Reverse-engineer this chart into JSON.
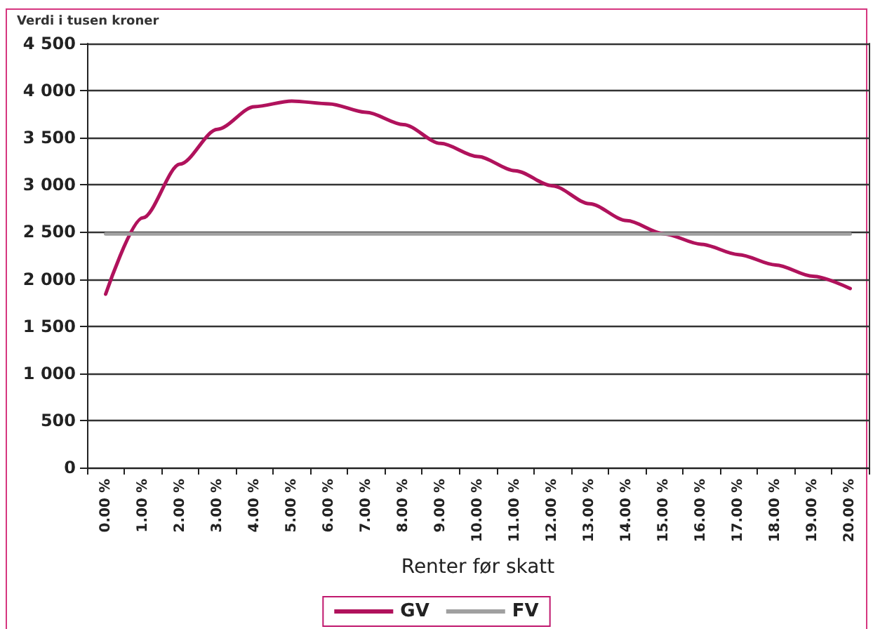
{
  "chart_data": {
    "type": "line",
    "ylabel": "Verdi i tusen kroner",
    "xlabel": "Renter før skatt",
    "categories": [
      "0.00 %",
      "1.00 %",
      "2.00 %",
      "3.00 %",
      "4.00 %",
      "5.00 %",
      "6.00 %",
      "7.00 %",
      "8.00 %",
      "9.00 %",
      "10.00 %",
      "11.00 %",
      "12.00 %",
      "13.00 %",
      "14.00 %",
      "15.00 %",
      "16.00 %",
      "17.00 %",
      "18.00 %",
      "19.00 %",
      "20.00 %"
    ],
    "series": [
      {
        "name": "GV",
        "color": "#b0125c",
        "values": [
          1840,
          2650,
          3220,
          3590,
          3830,
          3890,
          3860,
          3770,
          3640,
          3440,
          3300,
          3150,
          2990,
          2800,
          2620,
          2480,
          2370,
          2260,
          2150,
          2030,
          1900
        ]
      },
      {
        "name": "FV",
        "color": "#a0a0a0",
        "values": [
          2480,
          2480,
          2480,
          2480,
          2480,
          2480,
          2480,
          2480,
          2480,
          2480,
          2480,
          2480,
          2480,
          2480,
          2480,
          2480,
          2480,
          2480,
          2480,
          2480,
          2480
        ]
      }
    ],
    "ylim": [
      0,
      4500
    ],
    "yticks": [
      0,
      500,
      1000,
      1500,
      2000,
      2500,
      3000,
      3500,
      4000,
      4500
    ],
    "grid": "y",
    "legend": "bottom",
    "marker": "none",
    "line_style": "solid"
  }
}
